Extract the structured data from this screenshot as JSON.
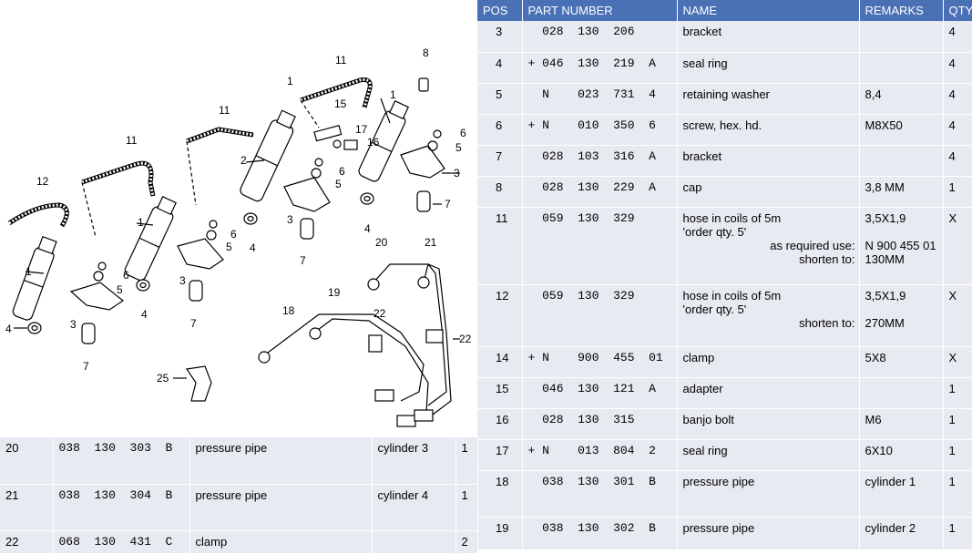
{
  "headers": {
    "pos": "POS",
    "part": "PART NUMBER",
    "name": "NAME",
    "remarks": "REMARKS",
    "qty": "QTY"
  },
  "rows": [
    {
      "pos": "3",
      "part": "  028  130  206",
      "name": "bracket",
      "remarks": "",
      "qty": "4"
    },
    {
      "pos": "4",
      "part": "+ 046  130  219  A",
      "name": "seal ring",
      "remarks": "",
      "qty": "4"
    },
    {
      "pos": "5",
      "part": "  N    023  731  4",
      "name": "retaining washer",
      "remarks": "8,4",
      "qty": "4"
    },
    {
      "pos": "6",
      "part": "+ N    010  350  6",
      "name": "screw, hex. hd.",
      "remarks": "M8X50",
      "qty": "4"
    },
    {
      "pos": "7",
      "part": "  028  103  316  A",
      "name": "bracket",
      "remarks": "",
      "qty": "4"
    },
    {
      "pos": "8",
      "part": "  028  130  229  A",
      "name": "cap",
      "remarks": "3,8 MM",
      "qty": "1"
    },
    {
      "pos": "11",
      "part": "  059  130  329",
      "name": "hose in coils of 5m",
      "name2": "'order qty. 5'",
      "name3": "as required use:",
      "name4": "shorten to:",
      "remarks": "3,5X1,9",
      "remarks3": "N   900 455 01",
      "remarks4": "130MM",
      "qty": "X"
    },
    {
      "pos": "12",
      "part": "  059  130  329",
      "name": "hose in coils of 5m",
      "name2": "'order qty. 5'",
      "name4": "shorten to:",
      "remarks": "3,5X1,9",
      "remarks4": "270MM",
      "qty": "X"
    },
    {
      "pos": "14",
      "part": "+ N    900  455  01",
      "name": "clamp",
      "remarks": "5X8",
      "qty": "X"
    },
    {
      "pos": "15",
      "part": "  046  130  121  A",
      "name": "adapter",
      "remarks": "",
      "qty": "1"
    },
    {
      "pos": "16",
      "part": "  028  130  315",
      "name": "banjo bolt",
      "remarks": "M6",
      "qty": "1"
    },
    {
      "pos": "17",
      "part": "+ N    013  804  2",
      "name": "seal ring",
      "remarks": "6X10",
      "qty": "1"
    },
    {
      "pos": "18",
      "part": "  038  130  301  B",
      "name": "pressure pipe",
      "remarks": "cylinder 1",
      "qty": "1"
    },
    {
      "pos": "19",
      "part": "  038  130  302  B",
      "name": "pressure pipe",
      "remarks": "cylinder 2",
      "qty": "1"
    }
  ],
  "bottom_rows": [
    {
      "pos": "20",
      "part": "038  130  303  B",
      "name": "pressure pipe",
      "remarks": "cylinder 3",
      "qty": "1"
    },
    {
      "pos": "21",
      "part": "038  130  304  B",
      "name": "pressure pipe",
      "remarks": "cylinder 4",
      "qty": "1"
    },
    {
      "pos": "22",
      "part": "068  130  431  C",
      "name": "clamp",
      "remarks": "",
      "qty": "2"
    }
  ],
  "diagram_labels": [
    "1",
    "1",
    "1",
    "1",
    "2",
    "3",
    "3",
    "3",
    "3",
    "4",
    "4",
    "4",
    "4",
    "5",
    "5",
    "5",
    "5",
    "6",
    "6",
    "6",
    "6",
    "7",
    "7",
    "7",
    "7",
    "8",
    "11",
    "11",
    "11",
    "12",
    "15",
    "16",
    "17",
    "18",
    "19",
    "20",
    "21",
    "22",
    "22",
    "25"
  ]
}
